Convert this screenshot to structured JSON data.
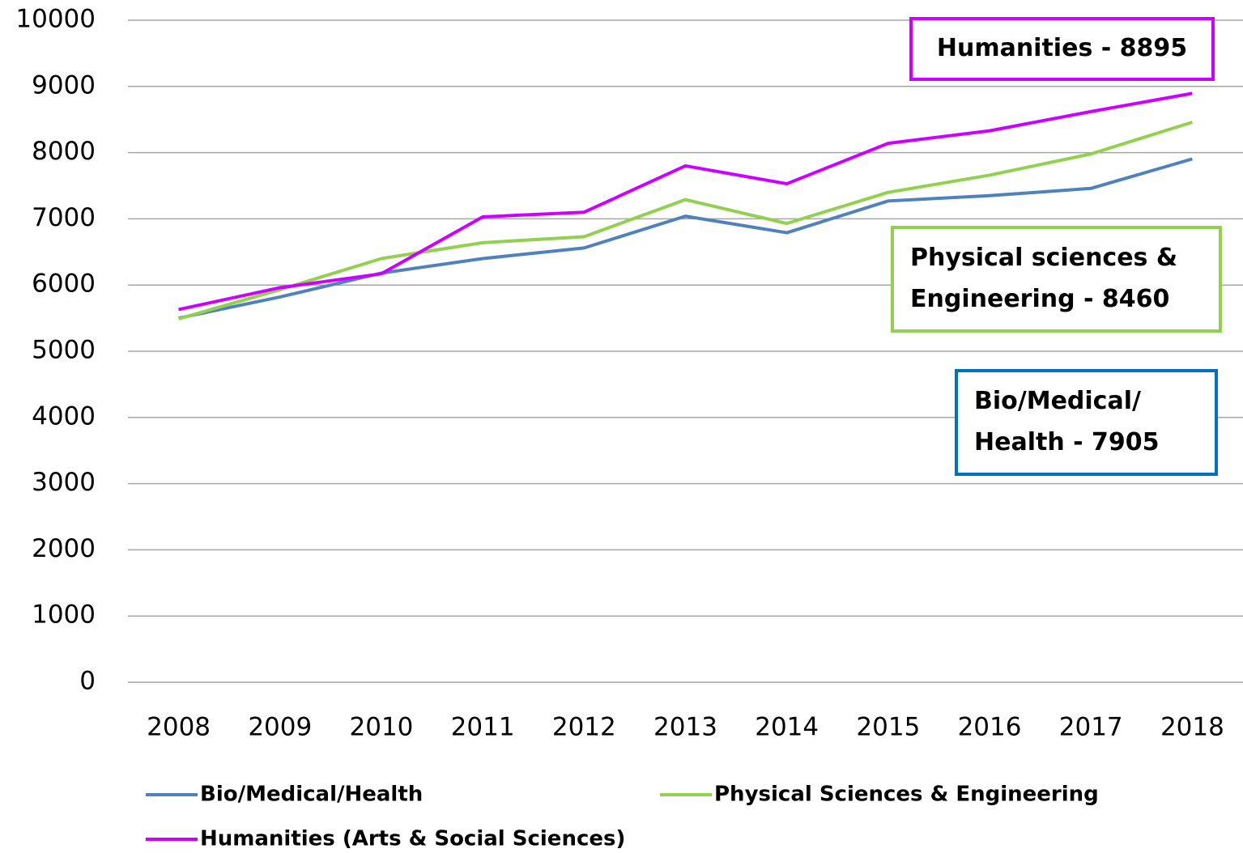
{
  "chart_data": {
    "type": "line",
    "categories": [
      "2008",
      "2009",
      "2010",
      "2011",
      "2012",
      "2013",
      "2014",
      "2015",
      "2016",
      "2017",
      "2018"
    ],
    "series": [
      {
        "name": "Bio/Medical/Health",
        "color": "#4f81bd",
        "values": [
          5500,
          5820,
          6180,
          6400,
          6560,
          7040,
          6790,
          7270,
          7350,
          7460,
          7905
        ]
      },
      {
        "name": "Physical Sciences & Engineering",
        "color": "#92d050",
        "values": [
          5490,
          5930,
          6400,
          6640,
          6730,
          7290,
          6930,
          7400,
          7660,
          7980,
          8460
        ]
      },
      {
        "name": "Humanities (Arts & Social Sciences)",
        "color": "#cc00ff",
        "values": [
          5630,
          5960,
          6170,
          7030,
          7100,
          7800,
          7530,
          8140,
          8330,
          8620,
          8895
        ]
      }
    ],
    "annotations": [
      {
        "lines": [
          "Humanities - 8895"
        ],
        "color": "#cc00ff"
      },
      {
        "lines": [
          "Physical sciences &",
          "Engineering - 8460"
        ],
        "color": "#92d050"
      },
      {
        "lines": [
          "Bio/Medical/",
          "Health - 7905"
        ],
        "color": "#0070c0"
      }
    ],
    "ylim": [
      0,
      10000
    ],
    "yticks": [
      0,
      1000,
      2000,
      3000,
      4000,
      5000,
      6000,
      7000,
      8000,
      9000,
      10000
    ],
    "grid": true
  }
}
